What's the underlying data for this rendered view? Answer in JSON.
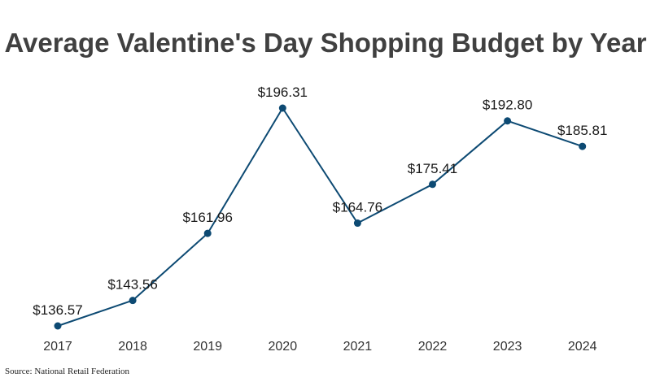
{
  "chart_data": {
    "type": "line",
    "title": "Average Valentine's Day Shopping Budget by Year",
    "xlabel": "",
    "ylabel": "",
    "categories": [
      "2017",
      "2018",
      "2019",
      "2020",
      "2021",
      "2022",
      "2023",
      "2024"
    ],
    "values": [
      136.57,
      143.56,
      161.96,
      196.31,
      164.76,
      175.41,
      192.8,
      185.81
    ],
    "data_labels": [
      "$136.57",
      "$143.56",
      "$161.96",
      "$196.31",
      "$164.76",
      "$175.41",
      "$192.80",
      "$185.81"
    ],
    "ylim": [
      136.57,
      196.31
    ],
    "grid": false,
    "legend": "none",
    "colors": {
      "line": "#0d4a73",
      "marker": "#0d4a73"
    }
  },
  "source": "Source: National Retail Federation"
}
